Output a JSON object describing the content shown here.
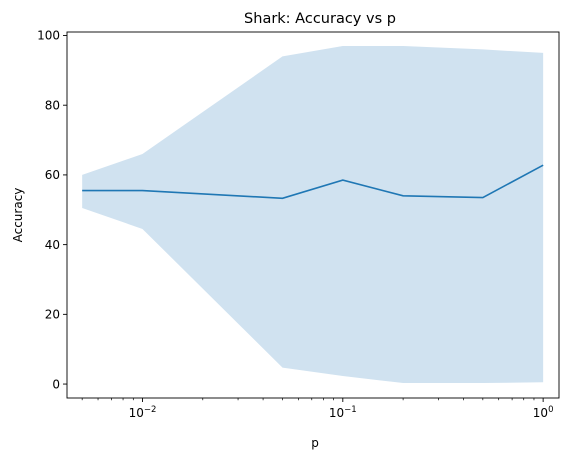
{
  "chart_data": {
    "type": "line",
    "title": "Shark: Accuracy vs p",
    "xlabel": "p",
    "ylabel": "Accuracy",
    "xscale": "log",
    "xlim": [
      0.0042,
      1.2
    ],
    "ylim": [
      -4,
      101
    ],
    "yticks": [
      0,
      20,
      40,
      60,
      80,
      100
    ],
    "xticks": [
      {
        "value": 0.01,
        "base": "10",
        "exp": "−2"
      },
      {
        "value": 0.1,
        "base": "10",
        "exp": "−1"
      },
      {
        "value": 1,
        "base": "10",
        "exp": "0"
      }
    ],
    "grid": false,
    "series": [
      {
        "color": "#1f77b4",
        "band_color": "#d0e2f0",
        "x": [
          0.005,
          0.01,
          0.05,
          0.1,
          0.2,
          0.5,
          1
        ],
        "values": [
          55.5,
          55.5,
          53.3,
          58.5,
          54.0,
          53.5,
          62.8
        ],
        "lower": [
          50.5,
          44.5,
          4.7,
          2.3,
          0.3,
          0.3,
          0.5
        ],
        "upper": [
          60.0,
          66.0,
          94.0,
          97.0,
          97.0,
          96.0,
          95.0
        ]
      }
    ]
  }
}
